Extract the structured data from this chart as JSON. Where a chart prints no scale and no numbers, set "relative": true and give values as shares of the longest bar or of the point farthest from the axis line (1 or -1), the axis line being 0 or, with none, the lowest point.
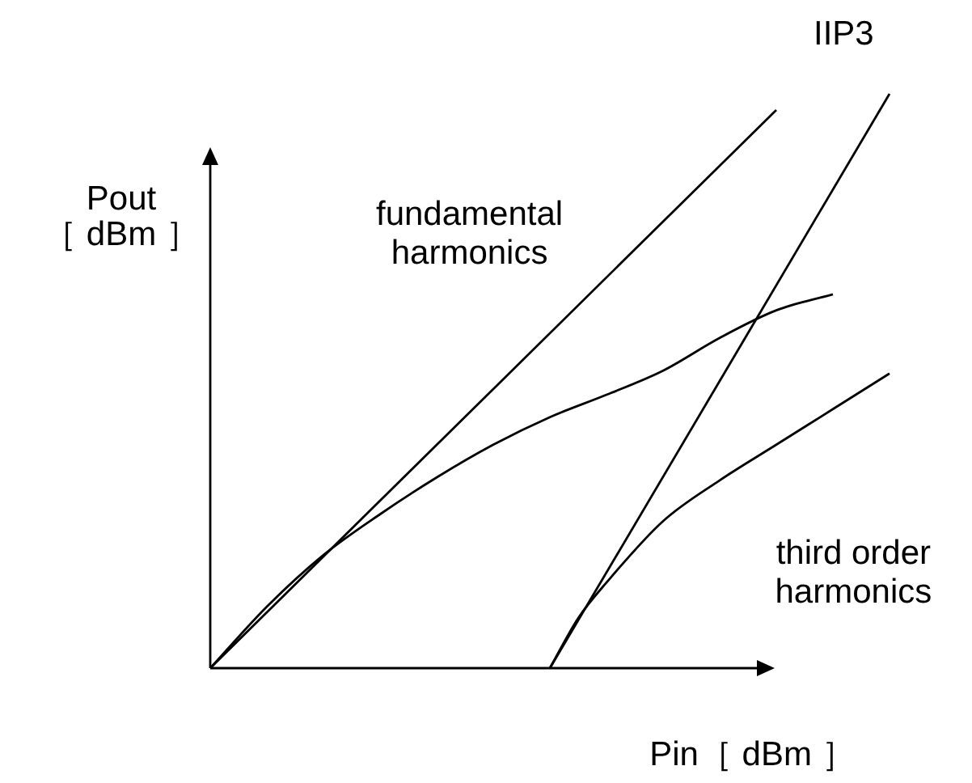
{
  "chart_data": {
    "type": "line",
    "relative": true,
    "xlabel": "Pin［ dBm ］",
    "ylabel": "Pout\n［ dBm ］",
    "marker": "none",
    "line_style": "solid",
    "categories": [
      null,
      null,
      null,
      null,
      null,
      null,
      null,
      null,
      null,
      null,
      null,
      null,
      null,
      null,
      null,
      null,
      null,
      null,
      null,
      null,
      null,
      null,
      null,
      null,
      null
    ],
    "series": [
      {
        "color": "#000000",
        "values": [
          0,
          null,
          null,
          null,
          null,
          null,
          null,
          null,
          null,
          null,
          null,
          null,
          null,
          null,
          null,
          null,
          null,
          null,
          null,
          null,
          0.972,
          null,
          null,
          null,
          null
        ]
      },
      {
        "color": "#000000",
        "values": [
          0,
          null,
          0.107,
          null,
          0.197,
          null,
          0.268,
          null,
          0.332,
          null,
          0.389,
          null,
          0.437,
          null,
          0.476,
          null,
          0.518,
          null,
          0.575,
          null,
          0.623,
          null,
          0.651,
          null,
          null
        ]
      },
      {
        "color": "#000000",
        "values": [
          null,
          null,
          null,
          null,
          null,
          null,
          null,
          null,
          null,
          null,
          null,
          null,
          0,
          null,
          null,
          null,
          null,
          null,
          null,
          null,
          null,
          null,
          null,
          null,
          1.0
        ]
      },
      {
        "color": "#000000",
        "values": [
          null,
          null,
          null,
          null,
          null,
          null,
          null,
          null,
          null,
          null,
          null,
          null,
          0,
          0.087,
          0.149,
          null,
          0.256,
          null,
          0.327,
          null,
          0.389,
          null,
          0.451,
          null,
          0.513
        ]
      }
    ],
    "annotations": [
      "fundamental\nharmonics",
      "third order\nharmonics",
      "IIP3"
    ]
  }
}
